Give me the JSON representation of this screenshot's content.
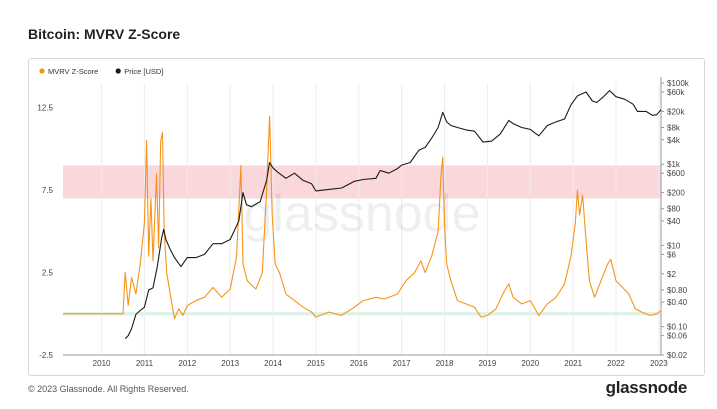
{
  "header": {
    "title": "Bitcoin: MVRV Z-Score"
  },
  "footer": {
    "copyright": "© 2023 Glassnode. All Rights Reserved.",
    "logo": "glassnode"
  },
  "watermark": "glassnode",
  "colors": {
    "mvrv": "#f7931a",
    "price": "#1a1a1a",
    "red_band": "#f9d0d3",
    "green_band": "#d6f0e3",
    "grid": "#ececec"
  },
  "chart_data": {
    "type": "line",
    "title": "Bitcoin: MVRV Z-Score",
    "x_ticks": [
      "2010",
      "2011",
      "2012",
      "2013",
      "2014",
      "2015",
      "2016",
      "2017",
      "2018",
      "2019",
      "2020",
      "2021",
      "2022",
      "2023"
    ],
    "xlim": [
      2009.1,
      2023.05
    ],
    "y_left": {
      "ticks": [
        "12.5",
        "7.5",
        "2.5",
        "-2.5"
      ],
      "ylim": [
        -2.5,
        14.0
      ]
    },
    "y_right": {
      "scale": "log",
      "ticks": [
        "$100k",
        "$60k",
        "$20k",
        "$8k",
        "$4k",
        "$1k",
        "$600",
        "$200",
        "$80",
        "$40",
        "$10",
        "$6",
        "$2",
        "$0.80",
        "$0.40",
        "$0.10",
        "$0.06",
        "$0.02"
      ],
      "ylim": [
        0.02,
        100000
      ]
    },
    "bands": [
      {
        "name": "red-zone",
        "y0": 7.0,
        "y1": 9.0
      },
      {
        "name": "green-zone",
        "y0": -0.1,
        "y1": 0.1
      }
    ],
    "legend": {
      "placement": "top-left",
      "items": [
        {
          "label": "MVRV Z-Score",
          "color": "#f7931a"
        },
        {
          "label": "Price [USD]",
          "color": "#1a1a1a"
        }
      ]
    },
    "series": [
      {
        "name": "MVRV Z-Score",
        "axis": "left",
        "color": "#f7931a",
        "points": [
          [
            2009.1,
            0.0
          ],
          [
            2010.5,
            0.0
          ],
          [
            2010.55,
            2.5
          ],
          [
            2010.62,
            0.5
          ],
          [
            2010.7,
            2.2
          ],
          [
            2010.8,
            1.2
          ],
          [
            2010.9,
            3.0
          ],
          [
            2011.0,
            5.5
          ],
          [
            2011.05,
            10.5
          ],
          [
            2011.1,
            3.5
          ],
          [
            2011.15,
            7.0
          ],
          [
            2011.2,
            3.2
          ],
          [
            2011.28,
            8.5
          ],
          [
            2011.33,
            4.0
          ],
          [
            2011.38,
            10.5
          ],
          [
            2011.42,
            11.0
          ],
          [
            2011.46,
            5.0
          ],
          [
            2011.52,
            2.5
          ],
          [
            2011.6,
            1.2
          ],
          [
            2011.7,
            -0.3
          ],
          [
            2011.8,
            0.3
          ],
          [
            2011.9,
            -0.1
          ],
          [
            2012.0,
            0.5
          ],
          [
            2012.2,
            0.8
          ],
          [
            2012.4,
            1.0
          ],
          [
            2012.6,
            1.6
          ],
          [
            2012.8,
            1.0
          ],
          [
            2013.0,
            1.5
          ],
          [
            2013.15,
            3.5
          ],
          [
            2013.25,
            9.0
          ],
          [
            2013.3,
            3.0
          ],
          [
            2013.4,
            2.0
          ],
          [
            2013.6,
            1.5
          ],
          [
            2013.75,
            2.5
          ],
          [
            2013.85,
            7.5
          ],
          [
            2013.92,
            12.0
          ],
          [
            2013.98,
            6.0
          ],
          [
            2014.05,
            3.0
          ],
          [
            2014.15,
            2.5
          ],
          [
            2014.3,
            1.2
          ],
          [
            2014.5,
            0.8
          ],
          [
            2014.7,
            0.4
          ],
          [
            2014.9,
            0.1
          ],
          [
            2015.0,
            -0.2
          ],
          [
            2015.3,
            0.1
          ],
          [
            2015.6,
            -0.1
          ],
          [
            2015.9,
            0.4
          ],
          [
            2016.1,
            0.8
          ],
          [
            2016.4,
            1.0
          ],
          [
            2016.6,
            0.9
          ],
          [
            2016.9,
            1.2
          ],
          [
            2017.1,
            2.0
          ],
          [
            2017.3,
            2.5
          ],
          [
            2017.45,
            3.2
          ],
          [
            2017.55,
            2.5
          ],
          [
            2017.7,
            3.5
          ],
          [
            2017.85,
            5.0
          ],
          [
            2017.92,
            8.5
          ],
          [
            2017.96,
            9.5
          ],
          [
            2018.0,
            5.5
          ],
          [
            2018.05,
            3.0
          ],
          [
            2018.15,
            2.0
          ],
          [
            2018.3,
            0.8
          ],
          [
            2018.5,
            0.6
          ],
          [
            2018.7,
            0.4
          ],
          [
            2018.85,
            -0.2
          ],
          [
            2019.0,
            -0.1
          ],
          [
            2019.2,
            0.3
          ],
          [
            2019.4,
            1.4
          ],
          [
            2019.5,
            1.8
          ],
          [
            2019.6,
            1.0
          ],
          [
            2019.8,
            0.6
          ],
          [
            2020.0,
            0.8
          ],
          [
            2020.2,
            -0.1
          ],
          [
            2020.4,
            0.6
          ],
          [
            2020.6,
            1.0
          ],
          [
            2020.8,
            1.8
          ],
          [
            2020.95,
            3.5
          ],
          [
            2021.05,
            5.5
          ],
          [
            2021.1,
            7.5
          ],
          [
            2021.15,
            6.0
          ],
          [
            2021.22,
            7.2
          ],
          [
            2021.3,
            4.5
          ],
          [
            2021.38,
            2.0
          ],
          [
            2021.5,
            1.0
          ],
          [
            2021.65,
            2.0
          ],
          [
            2021.8,
            3.0
          ],
          [
            2021.88,
            3.3
          ],
          [
            2022.0,
            2.0
          ],
          [
            2022.15,
            1.6
          ],
          [
            2022.3,
            1.2
          ],
          [
            2022.45,
            0.3
          ],
          [
            2022.6,
            0.1
          ],
          [
            2022.8,
            -0.1
          ],
          [
            2022.95,
            0.0
          ],
          [
            2023.05,
            0.2
          ]
        ]
      },
      {
        "name": "Price [USD]",
        "axis": "right",
        "color": "#1a1a1a",
        "points": [
          [
            2010.55,
            0.05
          ],
          [
            2010.62,
            0.06
          ],
          [
            2010.7,
            0.09
          ],
          [
            2010.8,
            0.2
          ],
          [
            2010.9,
            0.25
          ],
          [
            2011.0,
            0.3
          ],
          [
            2011.1,
            0.8
          ],
          [
            2011.2,
            0.9
          ],
          [
            2011.3,
            3.0
          ],
          [
            2011.4,
            15.0
          ],
          [
            2011.45,
            25.0
          ],
          [
            2011.5,
            14.0
          ],
          [
            2011.6,
            8.0
          ],
          [
            2011.7,
            5.0
          ],
          [
            2011.85,
            3.0
          ],
          [
            2012.0,
            5.0
          ],
          [
            2012.2,
            5.0
          ],
          [
            2012.4,
            6.0
          ],
          [
            2012.6,
            11.0
          ],
          [
            2012.8,
            11.0
          ],
          [
            2013.0,
            14.0
          ],
          [
            2013.2,
            40.0
          ],
          [
            2013.3,
            200.0
          ],
          [
            2013.38,
            100.0
          ],
          [
            2013.5,
            90.0
          ],
          [
            2013.7,
            120.0
          ],
          [
            2013.85,
            400.0
          ],
          [
            2013.92,
            1100.0
          ],
          [
            2014.0,
            800.0
          ],
          [
            2014.1,
            650.0
          ],
          [
            2014.3,
            450.0
          ],
          [
            2014.5,
            600.0
          ],
          [
            2014.7,
            400.0
          ],
          [
            2014.9,
            330.0
          ],
          [
            2015.0,
            220.0
          ],
          [
            2015.3,
            240.0
          ],
          [
            2015.6,
            260.0
          ],
          [
            2015.9,
            380.0
          ],
          [
            2016.1,
            420.0
          ],
          [
            2016.4,
            450.0
          ],
          [
            2016.5,
            700.0
          ],
          [
            2016.7,
            600.0
          ],
          [
            2016.9,
            780.0
          ],
          [
            2017.0,
            950.0
          ],
          [
            2017.2,
            1100.0
          ],
          [
            2017.4,
            2200.0
          ],
          [
            2017.55,
            2600.0
          ],
          [
            2017.7,
            4400.0
          ],
          [
            2017.85,
            8000.0
          ],
          [
            2017.96,
            19000.0
          ],
          [
            2018.05,
            11000.0
          ],
          [
            2018.15,
            9000.0
          ],
          [
            2018.3,
            8000.0
          ],
          [
            2018.5,
            7000.0
          ],
          [
            2018.7,
            6500.0
          ],
          [
            2018.9,
            3500.0
          ],
          [
            2019.1,
            3700.0
          ],
          [
            2019.3,
            5500.0
          ],
          [
            2019.5,
            12000.0
          ],
          [
            2019.6,
            10000.0
          ],
          [
            2019.8,
            8000.0
          ],
          [
            2020.0,
            7200.0
          ],
          [
            2020.2,
            5000.0
          ],
          [
            2020.4,
            9000.0
          ],
          [
            2020.6,
            11000.0
          ],
          [
            2020.8,
            13000.0
          ],
          [
            2020.95,
            29000.0
          ],
          [
            2021.1,
            48000.0
          ],
          [
            2021.3,
            60000.0
          ],
          [
            2021.45,
            36000.0
          ],
          [
            2021.55,
            33000.0
          ],
          [
            2021.7,
            45000.0
          ],
          [
            2021.85,
            65000.0
          ],
          [
            2022.0,
            46000.0
          ],
          [
            2022.2,
            40000.0
          ],
          [
            2022.4,
            30000.0
          ],
          [
            2022.5,
            20000.0
          ],
          [
            2022.7,
            20000.0
          ],
          [
            2022.85,
            16000.0
          ],
          [
            2022.95,
            16500.0
          ],
          [
            2023.05,
            22000.0
          ]
        ]
      }
    ]
  }
}
